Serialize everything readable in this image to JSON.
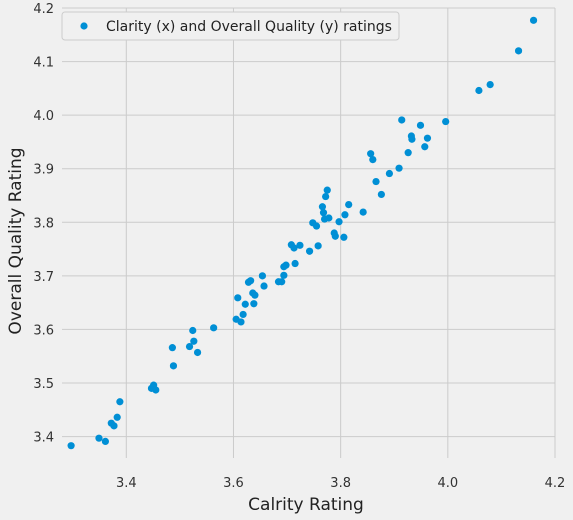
{
  "chart_data": {
    "type": "scatter",
    "xlabel": "Calrity Rating",
    "ylabel": "Overall Quality Rating",
    "xlim": [
      3.28,
      4.2
    ],
    "ylim": [
      3.36,
      4.2
    ],
    "xticks": [
      3.4,
      3.6,
      3.8,
      4.0,
      4.2
    ],
    "xtick_labels": [
      "3.4",
      "3.6",
      "3.8",
      "4.0",
      "4.2"
    ],
    "yticks": [
      3.4,
      3.5,
      3.6,
      3.7,
      3.8,
      3.9,
      4.0,
      4.1,
      4.2
    ],
    "ytick_labels": [
      "3.4",
      "3.5",
      "3.6",
      "3.7",
      "3.8",
      "3.9",
      "4.0",
      "4.1",
      "4.2"
    ],
    "grid": true,
    "legend_position": "top-left",
    "series": [
      {
        "name": "Clarity (x) and Overall Quality (y) ratings",
        "color": "#008fd5",
        "x": [
          3.297,
          3.349,
          3.361,
          3.372,
          3.377,
          3.383,
          3.388,
          3.447,
          3.451,
          3.455,
          3.486,
          3.488,
          3.518,
          3.524,
          3.526,
          3.533,
          3.563,
          3.605,
          3.608,
          3.614,
          3.618,
          3.622,
          3.628,
          3.632,
          3.636,
          3.638,
          3.64,
          3.654,
          3.657,
          3.684,
          3.69,
          3.694,
          3.694,
          3.698,
          3.708,
          3.713,
          3.715,
          3.724,
          3.742,
          3.748,
          3.755,
          3.758,
          3.766,
          3.768,
          3.77,
          3.772,
          3.775,
          3.778,
          3.788,
          3.79,
          3.797,
          3.806,
          3.808,
          3.815,
          3.842,
          3.856,
          3.86,
          3.866,
          3.876,
          3.891,
          3.909,
          3.914,
          3.926,
          3.932,
          3.933,
          3.949,
          3.957,
          3.962,
          3.996,
          4.058,
          4.079,
          4.132,
          4.16
        ],
        "y": [
          3.383,
          3.397,
          3.391,
          3.425,
          3.42,
          3.436,
          3.465,
          3.49,
          3.496,
          3.487,
          3.566,
          3.532,
          3.568,
          3.598,
          3.578,
          3.557,
          3.603,
          3.619,
          3.659,
          3.614,
          3.628,
          3.647,
          3.688,
          3.691,
          3.668,
          3.648,
          3.664,
          3.7,
          3.681,
          3.689,
          3.689,
          3.717,
          3.701,
          3.72,
          3.758,
          3.752,
          3.723,
          3.757,
          3.746,
          3.799,
          3.793,
          3.756,
          3.829,
          3.818,
          3.806,
          3.848,
          3.86,
          3.808,
          3.78,
          3.774,
          3.801,
          3.772,
          3.814,
          3.833,
          3.819,
          3.928,
          3.917,
          3.876,
          3.852,
          3.891,
          3.901,
          3.991,
          3.93,
          3.961,
          3.955,
          3.981,
          3.941,
          3.957,
          3.988,
          4.046,
          4.057,
          4.12,
          4.177
        ]
      }
    ]
  }
}
